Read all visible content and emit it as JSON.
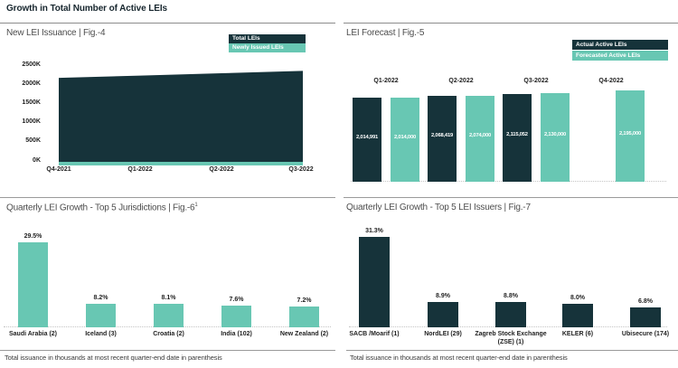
{
  "header": {
    "title": "Growth in Total Number of Active LEIs"
  },
  "colors": {
    "dark": "#16333a",
    "teal": "#68c7b3",
    "rule": "#8c8c8c",
    "panel_title_text": "#4d4d4d",
    "axis_text": "#1f1f1f",
    "bar_value_text": "#ffffff"
  },
  "chart_data": [
    {
      "id": "fig4",
      "type": "area",
      "title": "New LEI Issuance | Fig.-4",
      "legend": [
        {
          "label": "Total LEIs",
          "color": "#16333a"
        },
        {
          "label": "Newly Issued LEIs",
          "color": "#68c7b3"
        }
      ],
      "x": [
        "Q4-2021",
        "Q1-2022",
        "Q2-2022",
        "Q3-2022"
      ],
      "yticks": [
        "2500K",
        "2000K",
        "1500K",
        "1000K",
        "500K",
        "0K"
      ],
      "ylim_thousands": [
        0,
        2500
      ],
      "grid": false,
      "legend_position": "top-right",
      "series": [
        {
          "name": "Total LEIs",
          "values_thousands": [
            2170,
            2230,
            2290,
            2350
          ],
          "estimated": true
        },
        {
          "name": "Newly Issued LEIs",
          "values_thousands": [
            30,
            33,
            36,
            40
          ],
          "estimated": true
        }
      ]
    },
    {
      "id": "fig5",
      "type": "bar",
      "title": "LEI Forecast | Fig.-5",
      "legend": [
        {
          "label": "Actual Active LEIs",
          "color": "#16333a"
        },
        {
          "label": "Forecasted Active LEIs",
          "color": "#68c7b3"
        }
      ],
      "categories": [
        "Q1-2022",
        "Q2-2022",
        "Q3-2022",
        "Q4-2022"
      ],
      "series": [
        {
          "name": "Actual Active LEIs",
          "values": [
            2014991,
            2068419,
            2115052,
            null
          ],
          "labels": [
            "2,014,991",
            "2,068,419",
            "2,115,052",
            null
          ]
        },
        {
          "name": "Forecasted Active LEIs",
          "values": [
            2014000,
            2074000,
            2130000,
            2195000
          ],
          "labels": [
            "2,014,000",
            "2,074,000",
            "2,130,000",
            "2,195,000"
          ]
        }
      ],
      "ylim": [
        0,
        2195000
      ],
      "legend_position": "top-right"
    },
    {
      "id": "fig6",
      "type": "bar",
      "title": "Quarterly LEI Growth - Top 5 Jurisdictions | Fig.-6",
      "title_superscript": "1",
      "categories": [
        "Saudi Arabia (2)",
        "Iceland (3)",
        "Croatia (2)",
        "India (102)",
        "New Zealand (2)"
      ],
      "values": [
        29.5,
        8.2,
        8.1,
        7.6,
        7.2
      ],
      "labels": [
        "29.5%",
        "8.2%",
        "8.1%",
        "7.6%",
        "7.2%"
      ],
      "bar_color": "#68c7b3",
      "ylim": [
        0,
        31.3
      ],
      "footnote": "Total issuance in thousands at most recent quarter-end date in parenthesis"
    },
    {
      "id": "fig7",
      "type": "bar",
      "title": "Quarterly LEI Growth - Top 5 LEI Issuers | Fig.-7",
      "categories": [
        "SACB /Moarif (1)",
        "NordLEI (29)",
        "Zagreb Stock Exchange (ZSE) (1)",
        "KELER (6)",
        "Ubisecure (174)"
      ],
      "values": [
        31.3,
        8.9,
        8.8,
        8.0,
        6.8
      ],
      "labels": [
        "31.3%",
        "8.9%",
        "8.8%",
        "8.0%",
        "6.8%"
      ],
      "bar_color": "#16333a",
      "ylim": [
        0,
        31.3
      ],
      "footnote": "Total issuance in thousands at most recent quarter-end date in parenthesis"
    }
  ]
}
